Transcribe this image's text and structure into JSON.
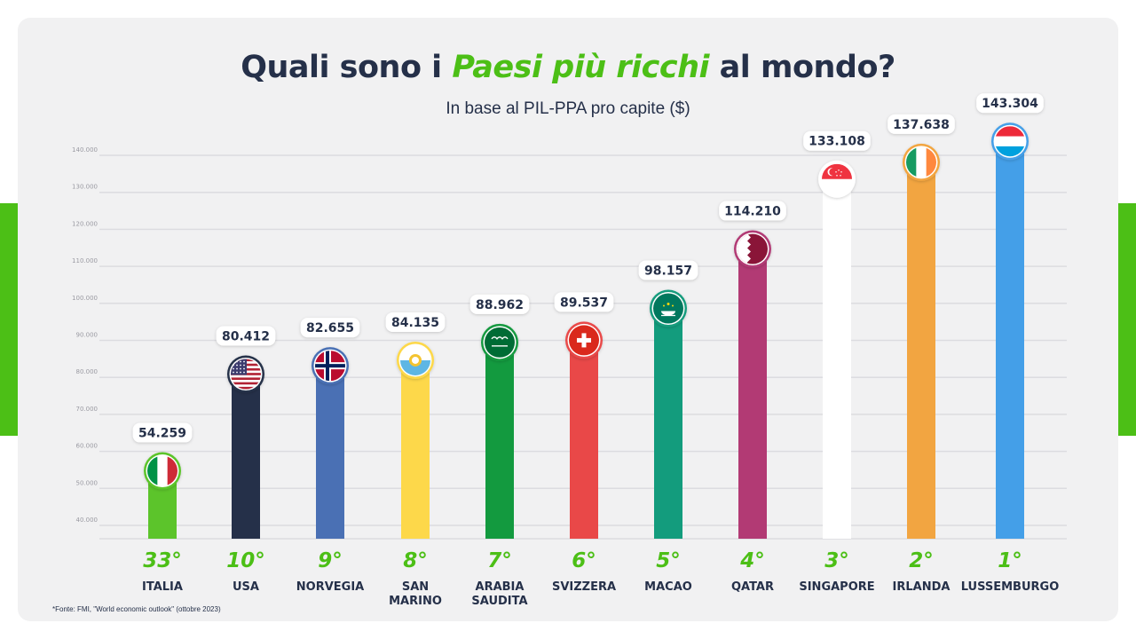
{
  "title": {
    "part1": "Quali sono i ",
    "highlight": "Paesi più ricchi",
    "part2": " al mondo?"
  },
  "subtitle": "In base al PIL-PPA pro capite ($)",
  "source": "*Fonte: FMI, \"World economic outlook\" (ottobre 2023)",
  "colors": {
    "background": "#f1f1f2",
    "accent_green": "#4cbf16",
    "text_dark": "#253049"
  },
  "chart_data": {
    "type": "bar",
    "title": "Quali sono i Paesi più ricchi al mondo?",
    "subtitle": "In base al PIL-PPA pro capite ($)",
    "ylim": [
      35000,
      145000
    ],
    "yticks": [
      "40.000",
      "50.000",
      "60.000",
      "70.000",
      "80.000",
      "90.000",
      "100.000",
      "110.000",
      "120.000",
      "130.000",
      "140.000"
    ],
    "ytick_values": [
      40000,
      50000,
      60000,
      70000,
      80000,
      90000,
      100000,
      110000,
      120000,
      130000,
      140000
    ],
    "grid": true,
    "categories": [
      [
        "ITALIA"
      ],
      [
        "USA"
      ],
      [
        "NORVEGIA"
      ],
      [
        "SAN",
        "MARINO"
      ],
      [
        "ARABIA",
        "SAUDITA"
      ],
      [
        "SVIZZERA"
      ],
      [
        "MACAO"
      ],
      [
        "QATAR"
      ],
      [
        "SINGAPORE"
      ],
      [
        "IRLANDA"
      ],
      [
        "LUSSEMBURGO"
      ]
    ],
    "values": [
      54259,
      80412,
      82655,
      84135,
      88962,
      89537,
      98157,
      114210,
      133108,
      137638,
      143304
    ],
    "value_labels": [
      "54.259",
      "80.412",
      "82.655",
      "84.135",
      "88.962",
      "89.537",
      "98.157",
      "114.210",
      "133.108",
      "137.638",
      "143.304"
    ],
    "ranks": [
      "33°",
      "10°",
      "9°",
      "8°",
      "7°",
      "6°",
      "5°",
      "4°",
      "3°",
      "2°",
      "1°"
    ],
    "bar_colors": [
      "#5cc42b",
      "#253049",
      "#4a70b4",
      "#fdd84a",
      "#139a3f",
      "#e94848",
      "#139c7d",
      "#b23a74",
      "#ffffff",
      "#f2a541",
      "#449fe8"
    ],
    "flags": [
      "italy-flag-icon",
      "usa-flag-icon",
      "norway-flag-icon",
      "san-marino-flag-icon",
      "saudi-arabia-flag-icon",
      "switzerland-flag-icon",
      "macao-flag-icon",
      "qatar-flag-icon",
      "singapore-flag-icon",
      "ireland-flag-icon",
      "luxembourg-flag-icon"
    ]
  }
}
